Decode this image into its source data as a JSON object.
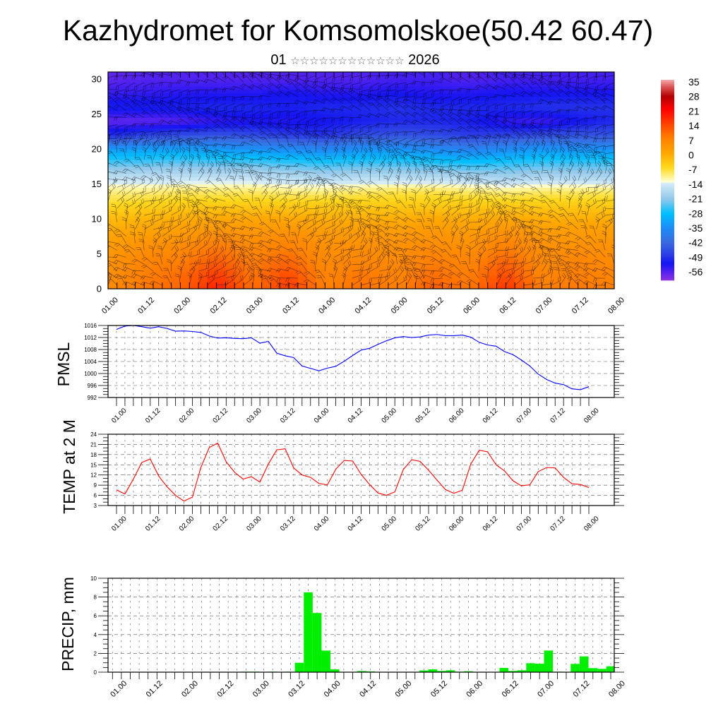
{
  "header": {
    "title": "Kazhydromet for Komsomolskoe(50.42 60.47)",
    "subtitle_day": "01",
    "subtitle_month": "☆☆☆☆☆☆☆☆☆☆☆☆",
    "subtitle_year": "2026"
  },
  "chart_data": [
    {
      "type": "heatmap",
      "title": "",
      "xlabel": "",
      "ylabel": "",
      "x_tick_labels": [
        "01.00",
        "01.12",
        "02.00",
        "02.12",
        "03.00",
        "03.12",
        "04.00",
        "04.12",
        "05.00",
        "05.12",
        "06.00",
        "06.12",
        "07.00",
        "07.12",
        "08.00"
      ],
      "yticks": [
        0,
        5,
        10,
        15,
        20,
        25,
        30
      ],
      "ylim": [
        0,
        31
      ],
      "levels": [
        0,
        2,
        4,
        6,
        8,
        10,
        12,
        14,
        16,
        18,
        20,
        22,
        24,
        26,
        28,
        30
      ],
      "values": [
        [
          6,
          9,
          11,
          19,
          10,
          16,
          8,
          10,
          8,
          12,
          9,
          17,
          8,
          9,
          8
        ],
        [
          5,
          8,
          10,
          16,
          9,
          14,
          7,
          9,
          7,
          10,
          8,
          14,
          7,
          8,
          7
        ],
        [
          4,
          7,
          8,
          12,
          8,
          11,
          6,
          7,
          6,
          8,
          7,
          11,
          6,
          7,
          6
        ],
        [
          3,
          5,
          6,
          9,
          6,
          8,
          5,
          5,
          5,
          6,
          5,
          8,
          5,
          5,
          5
        ],
        [
          1,
          2,
          3,
          5,
          4,
          5,
          3,
          3,
          3,
          4,
          3,
          5,
          3,
          3,
          3
        ],
        [
          -2,
          -1,
          0,
          1,
          1,
          1,
          0,
          0,
          0,
          1,
          0,
          1,
          0,
          0,
          0
        ],
        [
          -6,
          -5,
          -4,
          -4,
          -4,
          -4,
          -4,
          -4,
          -4,
          -4,
          -4,
          -4,
          -4,
          -4,
          -4
        ],
        [
          -10,
          -10,
          -9,
          -9,
          -9,
          -10,
          -10,
          -9,
          -8,
          -8,
          -9,
          -10,
          -9,
          -9,
          -9
        ],
        [
          -16,
          -16,
          -16,
          -16,
          -16,
          -17,
          -18,
          -17,
          -17,
          -17,
          -18,
          -19,
          -18,
          -18,
          -18
        ],
        [
          -24,
          -24,
          -23,
          -24,
          -24,
          -25,
          -26,
          -25,
          -25,
          -26,
          -27,
          -26,
          -25,
          -25,
          -25
        ],
        [
          -33,
          -32,
          -32,
          -33,
          -34,
          -35,
          -36,
          -34,
          -34,
          -35,
          -37,
          -35,
          -33,
          -34,
          -34
        ],
        [
          -50,
          -47,
          -46,
          -45,
          -46,
          -48,
          -49,
          -46,
          -45,
          -46,
          -48,
          -47,
          -46,
          -45,
          -45
        ],
        [
          -57,
          -57,
          -56,
          -54,
          -53,
          -53,
          -52,
          -51,
          -50,
          -50,
          -51,
          -54,
          -55,
          -52,
          -50
        ],
        [
          -51,
          -51,
          -51,
          -50,
          -50,
          -51,
          -50,
          -50,
          -49,
          -50,
          -50,
          -50,
          -49,
          -49,
          -49
        ],
        [
          -54,
          -54,
          -53,
          -53,
          -53,
          -52,
          -53,
          -53,
          -52,
          -53,
          -53,
          -52,
          -52,
          -52,
          -52
        ],
        [
          -57,
          -56,
          -56,
          -56,
          -56,
          -56,
          -56,
          -56,
          -55,
          -55,
          -56,
          -55,
          -55,
          -55,
          -55
        ]
      ],
      "colorbar": {
        "labels": [
          35,
          28,
          21,
          14,
          7,
          0,
          -7,
          -14,
          -21,
          -28,
          -35,
          -42,
          -49,
          -56
        ],
        "stops": [
          {
            "value": 36,
            "color": "#f4a8a8"
          },
          {
            "value": 32,
            "color": "#d84848"
          },
          {
            "value": 28,
            "color": "#b40000"
          },
          {
            "value": 22,
            "color": "#ff0000"
          },
          {
            "value": 15,
            "color": "#ff4200"
          },
          {
            "value": 8,
            "color": "#ff8000"
          },
          {
            "value": 1,
            "color": "#ffa600"
          },
          {
            "value": -6,
            "color": "#ffd81c"
          },
          {
            "value": -11,
            "color": "#fff5a0"
          },
          {
            "value": -13,
            "color": "#ffffd8"
          },
          {
            "value": -13.5,
            "color": "#d6ecf8"
          },
          {
            "value": -21,
            "color": "#92c8ea"
          },
          {
            "value": -28,
            "color": "#00bfff"
          },
          {
            "value": -35,
            "color": "#1e8cf6"
          },
          {
            "value": -42,
            "color": "#3a6ae0"
          },
          {
            "value": -48,
            "color": "#2a3ce6"
          },
          {
            "value": -52,
            "color": "#1414f2"
          },
          {
            "value": -56,
            "color": "#5222f0"
          },
          {
            "value": -60,
            "color": "#8a34e2"
          }
        ]
      }
    },
    {
      "type": "line",
      "title": "",
      "xlabel": "",
      "ylabel": "PMSL",
      "x_tick_labels": [
        "01.00",
        "01.12",
        "02.00",
        "02.12",
        "03.00",
        "03.12",
        "04.00",
        "04.12",
        "05.00",
        "05.12",
        "06.00",
        "06.12",
        "07.00",
        "07.12",
        "08.00"
      ],
      "yticks": [
        992,
        996,
        1000,
        1004,
        1008,
        1012,
        1016
      ],
      "ylim": [
        992,
        1016
      ],
      "grid": true,
      "color": "#0000ff",
      "values": [
        1014.7,
        1015.8,
        1016.0,
        1015.6,
        1015.1,
        1015.6,
        1015.0,
        1014.1,
        1014.2,
        1014.0,
        1013.7,
        1012.5,
        1011.8,
        1011.9,
        1011.7,
        1011.6,
        1011.9,
        1010.1,
        1010.7,
        1006.8,
        1005.9,
        1005.3,
        1002.5,
        1001.7,
        1000.9,
        1001.8,
        1002.4,
        1004.1,
        1006.0,
        1007.8,
        1008.4,
        1009.7,
        1010.9,
        1011.9,
        1012.3,
        1012.0,
        1012.2,
        1012.8,
        1013.0,
        1012.6,
        1012.6,
        1012.8,
        1012.1,
        1010.4,
        1009.5,
        1009.1,
        1007.3,
        1006.3,
        1004.5,
        1002.5,
        999.8,
        998.0,
        996.8,
        996.3,
        994.9,
        994.6,
        995.6
      ]
    },
    {
      "type": "line",
      "title": "",
      "xlabel": "",
      "ylabel": "TEMP at 2 M",
      "x_tick_labels": [
        "01.00",
        "01.12",
        "02.00",
        "02.12",
        "03.00",
        "03.12",
        "04.00",
        "04.12",
        "05.00",
        "05.12",
        "06.00",
        "06.12",
        "07.00",
        "07.12",
        "08.00"
      ],
      "yticks": [
        3,
        6,
        9,
        12,
        15,
        18,
        21,
        24
      ],
      "ylim": [
        3,
        24
      ],
      "grid": true,
      "color": "#ff0000",
      "values": [
        7.6,
        6.4,
        10.8,
        15.7,
        16.7,
        11.7,
        8.5,
        6.0,
        4.3,
        5.5,
        14.2,
        20.1,
        21.4,
        15.9,
        12.8,
        10.8,
        11.5,
        9.9,
        15.2,
        19.4,
        19.7,
        14.1,
        12.0,
        11.3,
        9.5,
        9.1,
        13.7,
        16.3,
        16.1,
        12.2,
        9.2,
        6.7,
        6.0,
        7.0,
        13.6,
        16.5,
        16.0,
        13.4,
        10.5,
        7.7,
        6.6,
        7.5,
        15.2,
        19.3,
        18.8,
        15.0,
        13.2,
        10.3,
        8.8,
        9.1,
        13.0,
        14.2,
        14.1,
        11.3,
        9.4,
        9.2,
        8.3
      ]
    },
    {
      "type": "bar",
      "title": "",
      "xlabel": "",
      "ylabel": "PRECIP, mm",
      "x_tick_labels": [
        "01.00",
        "01.12",
        "02.00",
        "02.12",
        "03.00",
        "03.12",
        "04.00",
        "04.12",
        "05.00",
        "05.12",
        "06.00",
        "06.12",
        "07.00",
        "07.12",
        "08.00"
      ],
      "yticks": [
        0,
        2,
        4,
        6,
        8,
        10
      ],
      "ylim": [
        0,
        10
      ],
      "grid": true,
      "color": "#00ee00",
      "values": [
        0,
        0,
        0,
        0,
        0,
        0,
        0,
        0,
        0,
        0,
        0,
        0,
        0,
        0,
        0,
        0.05,
        0.05,
        0,
        0.05,
        0,
        0.05,
        1.0,
        8.5,
        6.3,
        2.3,
        0.3,
        0,
        0,
        0.12,
        0.08,
        0,
        0,
        0,
        0,
        0,
        0.18,
        0.3,
        0.13,
        0.2,
        0.05,
        0.1,
        0.03,
        0.03,
        0,
        0.45,
        0.13,
        0.2,
        0.95,
        0.9,
        2.3,
        0.05,
        0,
        0.88,
        1.68,
        0.43,
        0.35,
        0.63
      ]
    }
  ]
}
